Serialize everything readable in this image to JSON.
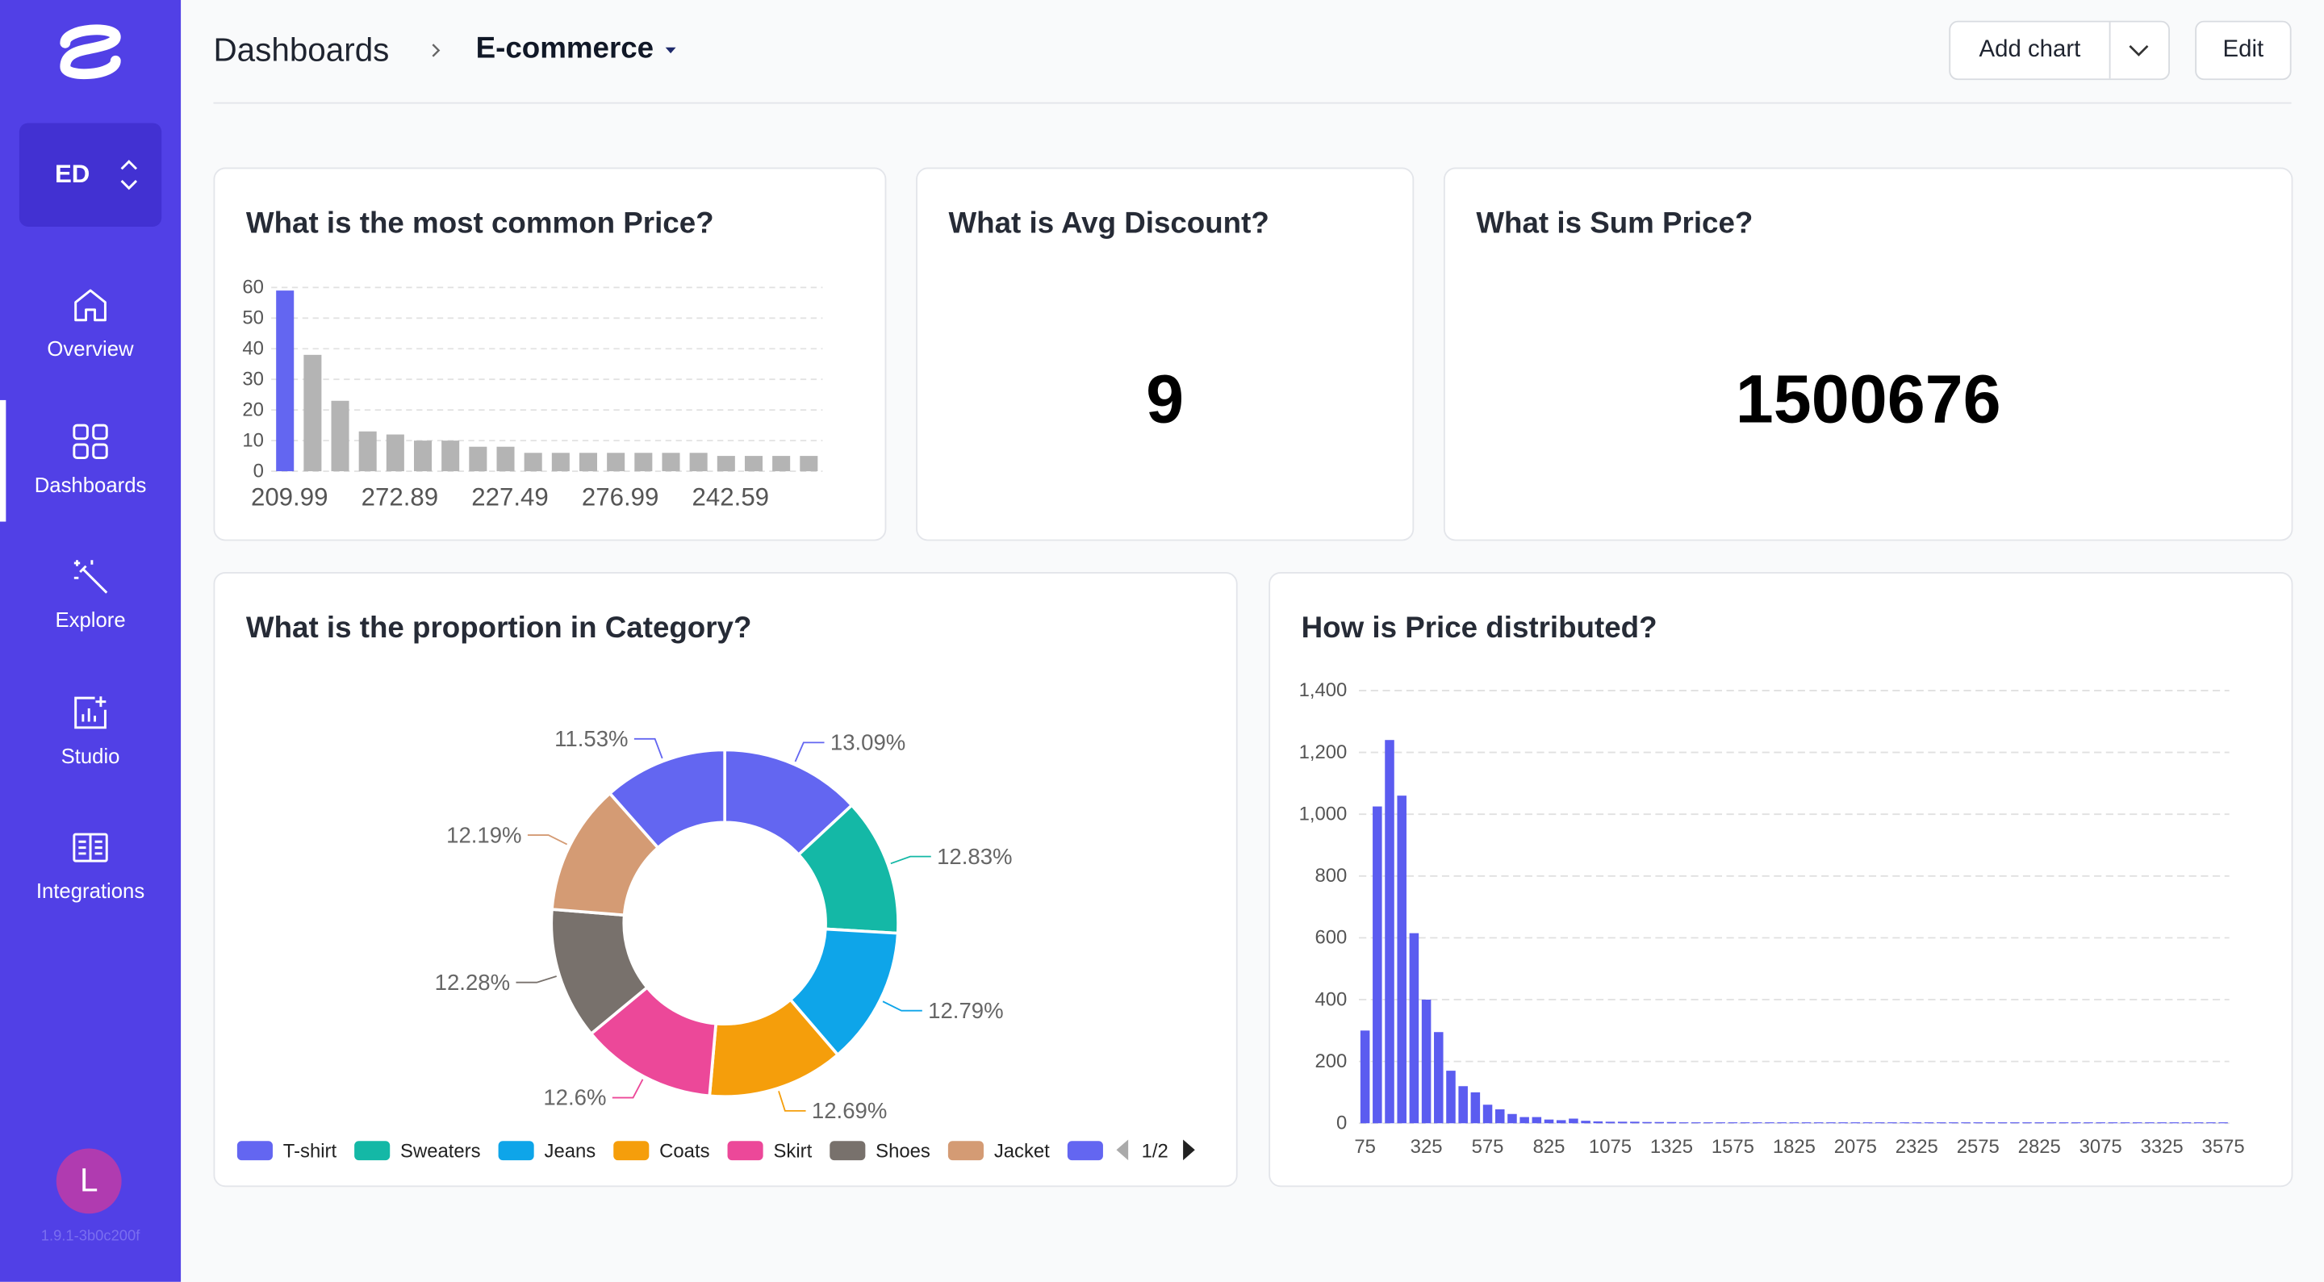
{
  "sidebar": {
    "workspace": "ED",
    "nav": [
      "Overview",
      "Dashboards",
      "Explore",
      "Studio",
      "Integrations"
    ],
    "avatar": "L",
    "version": "1.9.1-3b0c200f"
  },
  "header": {
    "breadcrumb": "Dashboards",
    "dashboard": "E-commerce",
    "buttons": [
      "Add chart",
      "Edit"
    ]
  },
  "metrics": [
    {
      "title": "What is Avg Discount?",
      "value": 9
    },
    {
      "title": "What is Sum Price?",
      "value": 1500676
    }
  ],
  "chart_data": [
    {
      "type": "bar",
      "title": "What is the most common Price?",
      "categories": [
        "209.99",
        null,
        null,
        null,
        "272.89",
        null,
        null,
        null,
        "227.49",
        null,
        null,
        null,
        "276.99",
        null,
        null,
        null,
        "242.59",
        null,
        null,
        null
      ],
      "values": [
        59,
        38,
        23,
        13,
        12,
        10,
        10,
        8,
        8,
        6,
        6,
        6,
        6,
        6,
        6,
        6,
        5,
        5,
        5,
        5
      ],
      "colors": [
        "#6366f1",
        "#b4b4b4",
        "#b4b4b4",
        "#b4b4b4",
        "#b4b4b4",
        "#b4b4b4",
        "#b4b4b4",
        "#b4b4b4",
        "#b4b4b4",
        "#b4b4b4",
        "#b4b4b4",
        "#b4b4b4",
        "#b4b4b4",
        "#b4b4b4",
        "#b4b4b4",
        "#b4b4b4",
        "#b4b4b4",
        "#b4b4b4",
        "#b4b4b4",
        "#b4b4b4"
      ],
      "ylim": [
        0,
        60
      ],
      "yticks": [
        0,
        10,
        20,
        30,
        40,
        50,
        60
      ],
      "grid": true
    },
    {
      "type": "pie",
      "title": "What is the proportion in Category?",
      "donut": true,
      "categories": [
        "T-shirt",
        "Sweaters",
        "Jeans",
        "Coats",
        "Skirt",
        "Shoes",
        "Jacket",
        null
      ],
      "values": [
        13.09,
        12.83,
        12.79,
        12.69,
        12.6,
        12.28,
        12.19,
        11.53
      ],
      "value_labels": [
        "13.09%",
        "12.83%",
        "12.79%",
        "12.69%",
        "12.6%",
        "12.28%",
        "12.19%",
        "11.53%"
      ],
      "colors": [
        "#6366f1",
        "#14b8a6",
        "#0ea5e9",
        "#f59e0b",
        "#ec4899",
        "#78716c",
        "#d49b74",
        "#6366f1"
      ],
      "legend_page": "1/2"
    },
    {
      "type": "histogram",
      "title": "How is Price distributed?",
      "color": "#5b5cf0",
      "bins": [
        50,
        100,
        150,
        200,
        250,
        300,
        350,
        400,
        450,
        500,
        550,
        600,
        650,
        700,
        750,
        800,
        850,
        900,
        950,
        1000,
        1050,
        1100,
        1150,
        1200,
        1250,
        1300,
        1350,
        1400,
        1450,
        1500,
        1550,
        1600,
        1650,
        1700,
        1750,
        1800,
        1850,
        1900,
        1950,
        2000,
        2050,
        2100,
        2150,
        2200,
        2250,
        2300,
        2350,
        2400,
        2450,
        2500,
        2550,
        2600,
        2650,
        2700,
        2750,
        2800,
        2850,
        2900,
        2950,
        3000,
        3050,
        3100,
        3150,
        3200,
        3250,
        3300,
        3350,
        3400,
        3450,
        3500,
        3550,
        3600
      ],
      "values": [
        300,
        1025,
        1240,
        1060,
        615,
        400,
        295,
        170,
        120,
        100,
        60,
        45,
        30,
        20,
        20,
        12,
        10,
        15,
        8,
        6,
        5,
        5,
        5,
        4,
        4,
        4,
        3,
        3,
        3,
        3,
        3,
        3,
        3,
        3,
        3,
        3,
        3,
        3,
        3,
        3,
        3,
        3,
        3,
        3,
        3,
        3,
        3,
        3,
        3,
        3,
        3,
        3,
        3,
        3,
        3,
        3,
        3,
        3,
        3,
        3,
        3,
        3,
        3,
        3,
        3,
        3,
        3,
        3,
        3,
        3,
        3
      ],
      "xlim": [
        50,
        3600
      ],
      "xticks": [
        75,
        325,
        575,
        825,
        1075,
        1325,
        1575,
        1825,
        2075,
        2325,
        2575,
        2825,
        3075,
        3325,
        3575
      ],
      "ylim": [
        0,
        1400
      ],
      "yticks": [
        0,
        200,
        400,
        600,
        800,
        {
          "value": 1000,
          "label": "1,000"
        },
        {
          "value": 1200,
          "label": "1,200"
        },
        {
          "value": 1400,
          "label": "1,400"
        }
      ],
      "grid": true
    }
  ]
}
